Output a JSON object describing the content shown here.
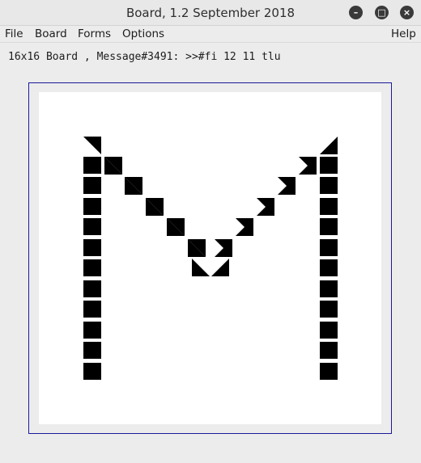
{
  "window": {
    "title": "Board, 1.2 September 2018",
    "buttons": [
      "minimize",
      "maximize",
      "close"
    ]
  },
  "menu": {
    "file": "File",
    "board": "Board",
    "forms": "Forms",
    "options": "Options",
    "help": "Help"
  },
  "status": {
    "text": "16x16 Board , Message#3491: >>#fi 12 11 tlu"
  },
  "board": {
    "size": "16x16",
    "shape": "letter M drawn with black square and triangle cells"
  }
}
